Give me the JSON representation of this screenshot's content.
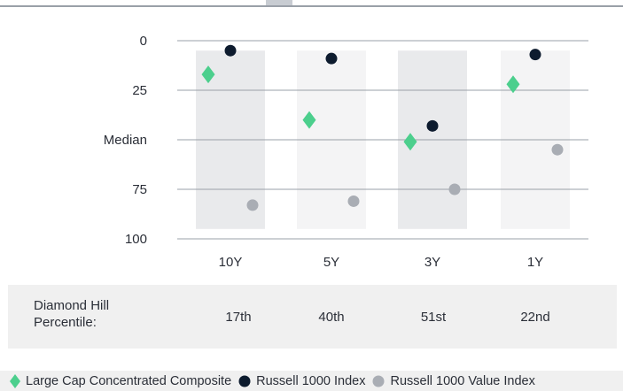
{
  "chart_data": {
    "type": "scatter",
    "categories": [
      "10Y",
      "5Y",
      "3Y",
      "1Y"
    ],
    "y_axis": {
      "range": [
        0,
        100
      ],
      "inverted": true,
      "ticks": [
        {
          "value": 0,
          "label": "0"
        },
        {
          "value": 25,
          "label": "25"
        },
        {
          "value": 50,
          "label": "Median"
        },
        {
          "value": 75,
          "label": "75"
        },
        {
          "value": 100,
          "label": "100"
        }
      ],
      "grid": true
    },
    "band_range": [
      5,
      95
    ],
    "series": [
      {
        "name": "Large Cap Concentrated Composite",
        "marker": "diamond",
        "color": "#4ccf8d",
        "values": [
          17,
          40,
          51,
          22
        ]
      },
      {
        "name": "Russell 1000 Index",
        "marker": "circle",
        "color": "#0d1b2e",
        "values": [
          5,
          9,
          43,
          7
        ]
      },
      {
        "name": "Russell 1000 Value Index",
        "marker": "circle",
        "color": "#a9adb4",
        "values": [
          83,
          81,
          75,
          55
        ]
      }
    ],
    "legend_position": "bottom"
  },
  "table": {
    "label": "Diamond Hill Percentile:",
    "values": [
      "17th",
      "40th",
      "51st",
      "22nd"
    ]
  },
  "colors": {
    "band_dark": "#e9eaec",
    "band_light": "#f4f4f5",
    "grid": "#9aa0a8",
    "text": "#2b2f38"
  }
}
